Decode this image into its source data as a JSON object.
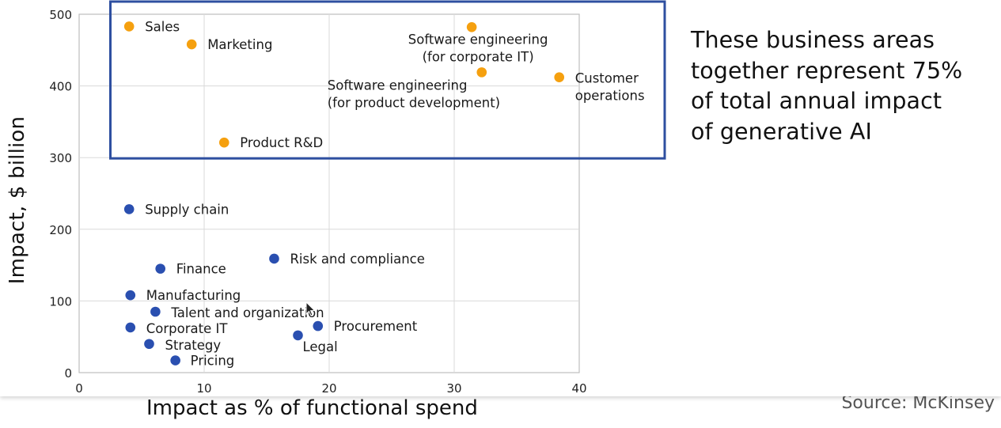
{
  "callout": {
    "lines": [
      "These business areas",
      "together represent 75%",
      "of total annual impact",
      "of generative AI"
    ]
  },
  "source": "Source: McKinsey",
  "colors": {
    "highlight": "#F5A00F",
    "other": "#2A4FB0",
    "box": "#2E4FA0",
    "grid": "#DADADA"
  },
  "cursor": {
    "icon": "mouse-pointer-icon"
  },
  "chart_data": {
    "type": "scatter",
    "title": "",
    "xlabel": "Impact as % of functional spend",
    "ylabel": "Impact, $ billion",
    "xlim": [
      0,
      40
    ],
    "ylim": [
      0,
      500
    ],
    "xticks": [
      "0",
      "10",
      "20",
      "30",
      "40"
    ],
    "yticks": [
      "0",
      "100",
      "200",
      "300",
      "400",
      "500"
    ],
    "grid": true,
    "highlight_box": {
      "x_range": [
        2.5,
        40
      ],
      "y_range": [
        300,
        500
      ],
      "note": "business areas highlighted"
    },
    "series": [
      {
        "name": "highlighted",
        "color_key": "highlight",
        "points": [
          {
            "label": [
              "Sales"
            ],
            "x": 4.0,
            "y": 483
          },
          {
            "label": [
              "Marketing"
            ],
            "x": 9.0,
            "y": 458
          },
          {
            "label": [
              "Software engineering",
              "(for corporate IT)"
            ],
            "x": 31.4,
            "y": 482
          },
          {
            "label": [
              "Software engineering",
              "(for product development)"
            ],
            "x": 32.2,
            "y": 419
          },
          {
            "label": [
              "Customer",
              "operations"
            ],
            "x": 38.4,
            "y": 412
          },
          {
            "label": [
              "Product R&D"
            ],
            "x": 11.6,
            "y": 321
          }
        ]
      },
      {
        "name": "other",
        "color_key": "other",
        "points": [
          {
            "label": [
              "Supply chain"
            ],
            "x": 4.0,
            "y": 228
          },
          {
            "label": [
              "Risk and compliance"
            ],
            "x": 15.6,
            "y": 159
          },
          {
            "label": [
              "Finance"
            ],
            "x": 6.5,
            "y": 145
          },
          {
            "label": [
              "Manufacturing"
            ],
            "x": 4.1,
            "y": 108
          },
          {
            "label": [
              "Talent and organization"
            ],
            "x": 6.1,
            "y": 85
          },
          {
            "label": [
              "Procurement"
            ],
            "x": 19.1,
            "y": 65
          },
          {
            "label": [
              "Corporate IT"
            ],
            "x": 4.1,
            "y": 63
          },
          {
            "label": [
              "Legal"
            ],
            "x": 17.5,
            "y": 52
          },
          {
            "label": [
              "Strategy"
            ],
            "x": 5.6,
            "y": 40
          },
          {
            "label": [
              "Pricing"
            ],
            "x": 7.7,
            "y": 17
          }
        ]
      }
    ]
  }
}
